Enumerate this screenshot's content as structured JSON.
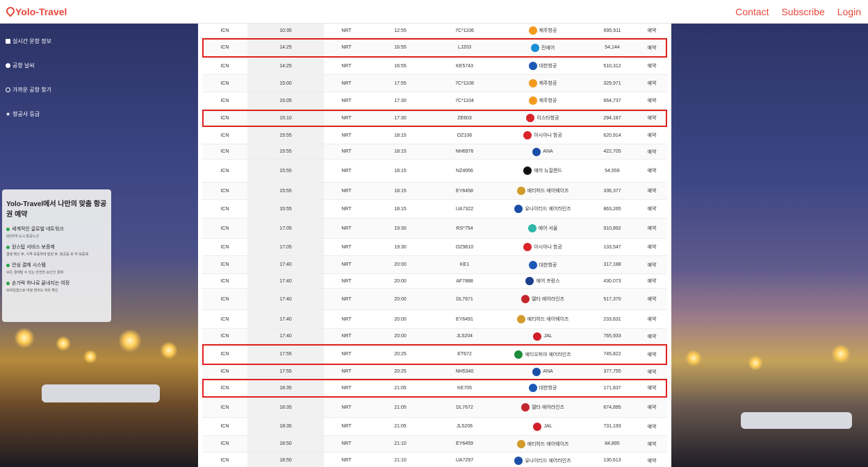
{
  "header": {
    "brand": "Yolo-Travel",
    "nav": [
      "Contact",
      "Subscribe",
      "Login"
    ]
  },
  "sidebar": {
    "items": [
      {
        "icon": "list-icon",
        "label": "실시간 운항 정보"
      },
      {
        "icon": "cloud-icon",
        "label": "공항 날씨"
      },
      {
        "icon": "search-icon",
        "label": "가까운 공항 찾기"
      },
      {
        "icon": "star-icon",
        "label": "항공사 등급"
      }
    ]
  },
  "promo": {
    "title": "Yolo-Travel에서 나만의 맞춤 항공권 예약",
    "features": [
      {
        "title": "세계적인 글로벌 네트워크",
        "desc": "5만여개 도시 항공노선"
      },
      {
        "title": "원스탑 서비스 보증제",
        "desc": "결제 확인 후, 가격 보증하며 발권 후, 항공등 피 약 보증제"
      },
      {
        "title": "안심 결제 시스템",
        "desc": "모든 결제될 수 있는 안전한 승인인 결제"
      },
      {
        "title": "손가락 하나로 끝내지는 여정",
        "desc": "모바일앱으로 여정 변어도 여유 확인"
      }
    ]
  },
  "colors": {
    "accent": "#e8473a",
    "highlight": "#e0201f",
    "status_green": "#27a745"
  },
  "flights": [
    {
      "dep": "ICN",
      "dt": "10:35",
      "arr": "NRT",
      "at": "12:55",
      "fl": "7C*1106",
      "air": "제주항공",
      "price": "695,911",
      "book": "예약",
      "logo": "#f39a1e",
      "h": 21,
      "hl": false
    },
    {
      "dep": "ICN",
      "dt": "14:25",
      "arr": "NRT",
      "at": "16:55",
      "fl": "LJ203",
      "air": "진에어",
      "price": "54,144",
      "book": "예약",
      "logo": "#1a8fd6",
      "h": 28,
      "hl": true
    },
    {
      "dep": "ICN",
      "dt": "14:25",
      "arr": "NRT",
      "at": "16:55",
      "fl": "KE5743",
      "air": "대한항공",
      "price": "510,312",
      "book": "예약",
      "logo": "#1d59b5",
      "h": 25,
      "hl": false
    },
    {
      "dep": "ICN",
      "dt": "15:00",
      "arr": "NRT",
      "at": "17:55",
      "fl": "7C*1108",
      "air": "제주항공",
      "price": "329,971",
      "book": "예약",
      "logo": "#f39a1e",
      "h": 25,
      "hl": false
    },
    {
      "dep": "ICN",
      "dt": "15:05",
      "arr": "NRT",
      "at": "17:30",
      "fl": "7C*1104",
      "air": "제주항공",
      "price": "664,737",
      "book": "예약",
      "logo": "#f39a1e",
      "h": 25,
      "hl": false
    },
    {
      "dep": "ICN",
      "dt": "15:10",
      "arr": "NRT",
      "at": "17:30",
      "fl": "ZE603",
      "air": "이스타항공",
      "price": "294,187",
      "book": "예약",
      "logo": "#d8242a",
      "h": 25,
      "hl": true
    },
    {
      "dep": "ICN",
      "dt": "15:55",
      "arr": "NRT",
      "at": "18:15",
      "fl": "OZ106",
      "air": "아시아나 항공",
      "price": "620,914",
      "book": "예약",
      "logo": "#d9252a",
      "h": 25,
      "hl": false
    },
    {
      "dep": "ICN",
      "dt": "15:55",
      "arr": "NRT",
      "at": "18:15",
      "fl": "NH6976",
      "air": "ANA",
      "price": "422,705",
      "book": "예약",
      "logo": "#1b4ea6",
      "h": 22,
      "hl": false
    },
    {
      "dep": "ICN",
      "dt": "15:55",
      "arr": "NRT",
      "at": "18:15",
      "fl": "NZ4056",
      "air": "에어 뉴질랜드",
      "price": "54,559",
      "book": "예약",
      "logo": "#111111",
      "h": 33,
      "hl": false
    },
    {
      "dep": "ICN",
      "dt": "15:55",
      "arr": "NRT",
      "at": "18:15",
      "fl": "EY6458",
      "air": "에티하드 에어웨이즈",
      "price": "336,377",
      "book": "예약",
      "logo": "#d29b2c",
      "h": 25,
      "hl": false
    },
    {
      "dep": "ICN",
      "dt": "15:55",
      "arr": "NRT",
      "at": "18:15",
      "fl": "UA7322",
      "air": "유나이티드 에어라인즈",
      "price": "863,265",
      "book": "예약",
      "logo": "#1b4ea6",
      "h": 27,
      "hl": false
    },
    {
      "dep": "ICN",
      "dt": "17:05",
      "arr": "NRT",
      "at": "19:30",
      "fl": "RS*754",
      "air": "에어 서울",
      "price": "910,892",
      "book": "예약",
      "logo": "#2fb6a7",
      "h": 29,
      "hl": false
    },
    {
      "dep": "ICN",
      "dt": "17:05",
      "arr": "NRT",
      "at": "19:30",
      "fl": "OZ9610",
      "air": "아시아나 항공",
      "price": "133,547",
      "book": "예약",
      "logo": "#d9252a",
      "h": 25,
      "hl": false
    },
    {
      "dep": "ICN",
      "dt": "17:40",
      "arr": "NRT",
      "at": "20:00",
      "fl": "KE1",
      "air": "대한항공",
      "price": "317,188",
      "book": "예약",
      "logo": "#1d59b5",
      "h": 26,
      "hl": false
    },
    {
      "dep": "ICN",
      "dt": "17:40",
      "arr": "NRT",
      "at": "20:00",
      "fl": "AF7888",
      "air": "에어 프랑스",
      "price": "430,073",
      "book": "예약",
      "logo": "#1b3f8e",
      "h": 21,
      "hl": false
    },
    {
      "dep": "ICN",
      "dt": "17:40",
      "arr": "NRT",
      "at": "20:00",
      "fl": "DL7671",
      "air": "델타 에어라인즈",
      "price": "517,370",
      "book": "예약",
      "logo": "#c4262e",
      "h": 31,
      "hl": false
    },
    {
      "dep": "ICN",
      "dt": "17:40",
      "arr": "NRT",
      "at": "20:00",
      "fl": "EY6491",
      "air": "에티하드 에어웨이즈",
      "price": "233,631",
      "book": "예약",
      "logo": "#d29b2c",
      "h": 27,
      "hl": false
    },
    {
      "dep": "ICN",
      "dt": "17:40",
      "arr": "NRT",
      "at": "20:00",
      "fl": "JL5204",
      "air": "JAL",
      "price": "765,933",
      "book": "예약",
      "logo": "#d01f2a",
      "h": 22,
      "hl": false
    },
    {
      "dep": "ICN",
      "dt": "17:55",
      "arr": "NRT",
      "at": "20:25",
      "fl": "ET672",
      "air": "에티오피아 에어라인즈",
      "price": "745,822",
      "book": "예약",
      "logo": "#1e8c3a",
      "h": 30,
      "hl": true
    },
    {
      "dep": "ICN",
      "dt": "17:55",
      "arr": "NRT",
      "at": "20:25",
      "fl": "NH5340",
      "air": "ANA",
      "price": "377,755",
      "book": "예약",
      "logo": "#1b4ea6",
      "h": 20,
      "hl": false
    },
    {
      "dep": "ICN",
      "dt": "18:35",
      "arr": "NRT",
      "at": "21:05",
      "fl": "KE705",
      "air": "대한항공",
      "price": "171,837",
      "book": "예약",
      "logo": "#1d59b5",
      "h": 27,
      "hl": true
    },
    {
      "dep": "ICN",
      "dt": "18:35",
      "arr": "NRT",
      "at": "21:05",
      "fl": "DL7672",
      "air": "델타 에어라인즈",
      "price": "674,895",
      "book": "예약",
      "logo": "#c4262e",
      "h": 29,
      "hl": false
    },
    {
      "dep": "ICN",
      "dt": "18:35",
      "arr": "NRT",
      "at": "21:05",
      "fl": "JL5206",
      "air": "JAL",
      "price": "731,193",
      "book": "예약",
      "logo": "#d01f2a",
      "h": 26,
      "hl": false
    },
    {
      "dep": "ICN",
      "dt": "18:50",
      "arr": "NRT",
      "at": "21:10",
      "fl": "EY6459",
      "air": "에티하드 에어웨이즈",
      "price": "84,895",
      "book": "예약",
      "logo": "#d29b2c",
      "h": 24,
      "hl": false
    },
    {
      "dep": "ICN",
      "dt": "18:50",
      "arr": "NRT",
      "at": "21:10",
      "fl": "UA7297",
      "air": "유나이티드 에어라인즈",
      "price": "130,613",
      "book": "예약",
      "logo": "#1b4ea6",
      "h": 24,
      "hl": false
    }
  ]
}
